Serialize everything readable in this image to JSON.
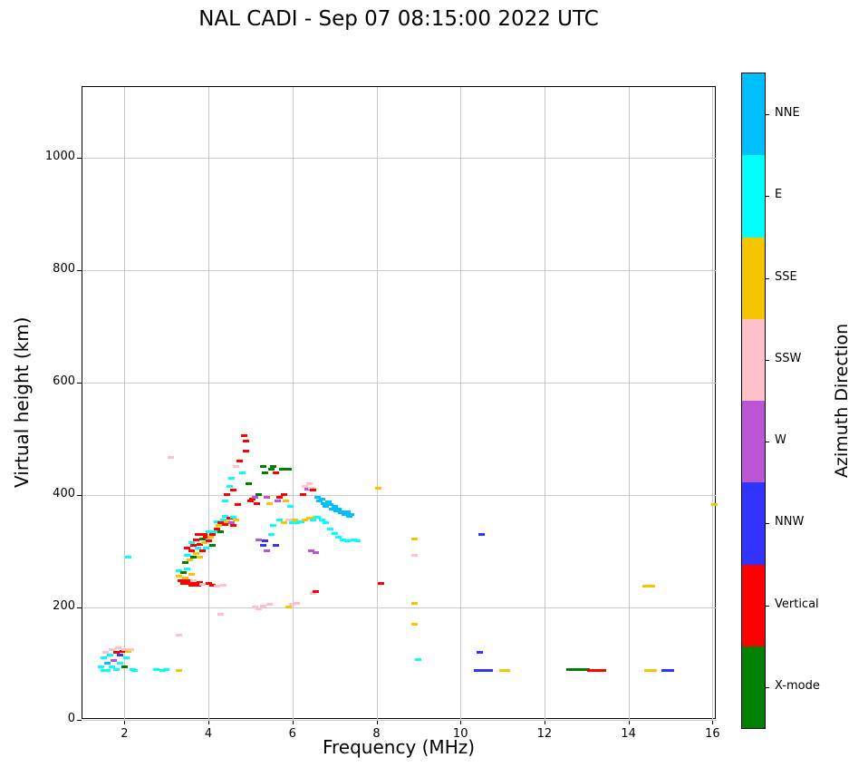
{
  "title": "NAL CADI - Sep 07 08:15:00 2022 UTC",
  "chart_data": {
    "type": "scatter",
    "title": "NAL CADI - Sep 07 08:15:00 2022 UTC",
    "xlabel": "Frequency (MHz)",
    "ylabel": "Virtual height (km)",
    "colorbar_label": "Azimuth Direction",
    "xlim": [
      1,
      16.1
    ],
    "ylim": [
      0,
      1125
    ],
    "x_ticks": [
      2,
      4,
      6,
      8,
      10,
      12,
      14,
      16
    ],
    "y_ticks": [
      0,
      200,
      400,
      600,
      800,
      1000
    ],
    "grid": true,
    "legend_position": "right-colorbar",
    "marker": "horizontal-dash",
    "categories": [
      {
        "label": "NNE",
        "color": "#00BFFF"
      },
      {
        "label": "E",
        "color": "#00FFFF"
      },
      {
        "label": "SSE",
        "color": "#F5C500"
      },
      {
        "label": "SSW",
        "color": "#FFC0CB"
      },
      {
        "label": "W",
        "color": "#BA55D3"
      },
      {
        "label": "NNW",
        "color": "#3333FF"
      },
      {
        "label": "Vertical",
        "color": "#FF0000"
      },
      {
        "label": "X-mode",
        "color": "#008000"
      }
    ],
    "points_format": [
      "frequency_mhz",
      "virtual_height_km",
      "direction_index"
    ],
    "points": [
      [
        1.45,
        95,
        1
      ],
      [
        1.5,
        110,
        1
      ],
      [
        1.5,
        88,
        1
      ],
      [
        1.55,
        120,
        3
      ],
      [
        1.6,
        100,
        0
      ],
      [
        1.6,
        88,
        1
      ],
      [
        1.65,
        115,
        1
      ],
      [
        1.7,
        125,
        3
      ],
      [
        1.7,
        95,
        1
      ],
      [
        1.75,
        105,
        4
      ],
      [
        1.8,
        120,
        6
      ],
      [
        1.8,
        90,
        1
      ],
      [
        1.85,
        128,
        3
      ],
      [
        1.9,
        115,
        5
      ],
      [
        1.9,
        100,
        1
      ],
      [
        1.95,
        122,
        6
      ],
      [
        2.0,
        95,
        7
      ],
      [
        2.0,
        125,
        3
      ],
      [
        2.05,
        110,
        1
      ],
      [
        2.1,
        122,
        2
      ],
      [
        2.15,
        125,
        3
      ],
      [
        2.2,
        90,
        1
      ],
      [
        2.25,
        88,
        1
      ],
      [
        2.1,
        290,
        1
      ],
      [
        2.75,
        90,
        1
      ],
      [
        2.9,
        88,
        1
      ],
      [
        3.0,
        90,
        1
      ],
      [
        3.3,
        150,
        3
      ],
      [
        3.3,
        88,
        2
      ],
      [
        3.3,
        265,
        1
      ],
      [
        3.3,
        255,
        2
      ],
      [
        3.35,
        248,
        6
      ],
      [
        3.4,
        243,
        6
      ],
      [
        3.4,
        262,
        7
      ],
      [
        3.45,
        252,
        2
      ],
      [
        3.5,
        247,
        6
      ],
      [
        3.5,
        268,
        1
      ],
      [
        3.55,
        243,
        6
      ],
      [
        3.6,
        240,
        6
      ],
      [
        3.6,
        258,
        2
      ],
      [
        3.65,
        247,
        3
      ],
      [
        3.7,
        242,
        6
      ],
      [
        3.75,
        239,
        6
      ],
      [
        3.8,
        244,
        6
      ],
      [
        3.85,
        241,
        3
      ],
      [
        3.45,
        280,
        7
      ],
      [
        3.5,
        292,
        1
      ],
      [
        3.5,
        305,
        6
      ],
      [
        3.55,
        285,
        2
      ],
      [
        3.6,
        300,
        6
      ],
      [
        3.6,
        315,
        1
      ],
      [
        3.65,
        290,
        7
      ],
      [
        3.65,
        310,
        6
      ],
      [
        3.7,
        295,
        2
      ],
      [
        3.7,
        320,
        6
      ],
      [
        3.75,
        305,
        1
      ],
      [
        3.75,
        330,
        6
      ],
      [
        3.8,
        312,
        6
      ],
      [
        3.8,
        290,
        2
      ],
      [
        3.85,
        322,
        7
      ],
      [
        3.85,
        300,
        6
      ],
      [
        3.9,
        315,
        2
      ],
      [
        3.9,
        330,
        6
      ],
      [
        3.95,
        305,
        1
      ],
      [
        3.95,
        325,
        6
      ],
      [
        4.0,
        318,
        6
      ],
      [
        4.0,
        335,
        1
      ],
      [
        4.05,
        325,
        2
      ],
      [
        4.1,
        330,
        6
      ],
      [
        4.1,
        310,
        7
      ],
      [
        4.15,
        335,
        1
      ],
      [
        4.2,
        340,
        6
      ],
      [
        4.2,
        352,
        1
      ],
      [
        4.25,
        345,
        2
      ],
      [
        4.3,
        350,
        6
      ],
      [
        4.3,
        335,
        7
      ],
      [
        4.35,
        355,
        1
      ],
      [
        4.4,
        348,
        6
      ],
      [
        4.4,
        362,
        1
      ],
      [
        4.45,
        352,
        2
      ],
      [
        4.5,
        358,
        6
      ],
      [
        4.55,
        350,
        4
      ],
      [
        4.6,
        360,
        1
      ],
      [
        4.6,
        345,
        6
      ],
      [
        4.65,
        355,
        2
      ],
      [
        4.4,
        390,
        1
      ],
      [
        4.45,
        400,
        6
      ],
      [
        4.5,
        415,
        1
      ],
      [
        4.55,
        430,
        1
      ],
      [
        4.6,
        408,
        6
      ],
      [
        4.65,
        450,
        3
      ],
      [
        4.7,
        382,
        6
      ],
      [
        4.75,
        460,
        6
      ],
      [
        4.8,
        440,
        1
      ],
      [
        4.85,
        505,
        6
      ],
      [
        4.9,
        495,
        6
      ],
      [
        4.9,
        478,
        6
      ],
      [
        4.95,
        420,
        7
      ],
      [
        5.0,
        390,
        6
      ],
      [
        5.05,
        392,
        6
      ],
      [
        5.1,
        395,
        4
      ],
      [
        5.15,
        385,
        6
      ],
      [
        5.2,
        400,
        7
      ],
      [
        5.3,
        450,
        7
      ],
      [
        5.35,
        440,
        7
      ],
      [
        5.4,
        395,
        4
      ],
      [
        5.45,
        385,
        2
      ],
      [
        5.5,
        445,
        7
      ],
      [
        5.55,
        450,
        7
      ],
      [
        5.6,
        440,
        6
      ],
      [
        5.65,
        390,
        4
      ],
      [
        5.7,
        395,
        6
      ],
      [
        5.75,
        445,
        7
      ],
      [
        5.8,
        400,
        6
      ],
      [
        5.85,
        390,
        2
      ],
      [
        5.9,
        445,
        7
      ],
      [
        5.95,
        380,
        1
      ],
      [
        5.2,
        320,
        4
      ],
      [
        5.3,
        310,
        5
      ],
      [
        5.35,
        318,
        5
      ],
      [
        5.4,
        300,
        4
      ],
      [
        5.5,
        330,
        1
      ],
      [
        5.55,
        345,
        1
      ],
      [
        5.6,
        310,
        5
      ],
      [
        5.7,
        355,
        1
      ],
      [
        5.8,
        350,
        2
      ],
      [
        5.9,
        355,
        3
      ],
      [
        6.0,
        350,
        1
      ],
      [
        6.05,
        355,
        2
      ],
      [
        6.1,
        350,
        1
      ],
      [
        6.2,
        352,
        1
      ],
      [
        6.3,
        355,
        2
      ],
      [
        6.4,
        358,
        2
      ],
      [
        6.5,
        355,
        1
      ],
      [
        6.55,
        360,
        2
      ],
      [
        6.25,
        400,
        6
      ],
      [
        6.3,
        415,
        3
      ],
      [
        6.35,
        410,
        4
      ],
      [
        6.4,
        420,
        3
      ],
      [
        6.45,
        412,
        3
      ],
      [
        6.5,
        408,
        6
      ],
      [
        6.6,
        395,
        0
      ],
      [
        6.65,
        390,
        0
      ],
      [
        6.7,
        392,
        0
      ],
      [
        6.75,
        385,
        0
      ],
      [
        6.8,
        380,
        0
      ],
      [
        6.85,
        388,
        0
      ],
      [
        6.9,
        382,
        0
      ],
      [
        6.95,
        375,
        0
      ],
      [
        7.0,
        380,
        0
      ],
      [
        7.05,
        372,
        0
      ],
      [
        7.1,
        375,
        0
      ],
      [
        7.15,
        368,
        0
      ],
      [
        7.2,
        370,
        0
      ],
      [
        7.25,
        365,
        0
      ],
      [
        7.3,
        370,
        0
      ],
      [
        7.35,
        362,
        0
      ],
      [
        7.4,
        365,
        0
      ],
      [
        6.6,
        360,
        1
      ],
      [
        6.7,
        355,
        1
      ],
      [
        6.8,
        350,
        1
      ],
      [
        6.9,
        340,
        1
      ],
      [
        7.0,
        332,
        1
      ],
      [
        7.1,
        325,
        1
      ],
      [
        7.2,
        320,
        1
      ],
      [
        7.3,
        318,
        1
      ],
      [
        7.45,
        320,
        1
      ],
      [
        7.55,
        318,
        1
      ],
      [
        6.45,
        300,
        4
      ],
      [
        6.55,
        298,
        4
      ],
      [
        6.5,
        225,
        3
      ],
      [
        6.55,
        228,
        6
      ],
      [
        5.1,
        200,
        3
      ],
      [
        5.2,
        197,
        3
      ],
      [
        5.3,
        202,
        3
      ],
      [
        5.45,
        205,
        3
      ],
      [
        5.9,
        200,
        2
      ],
      [
        6.0,
        205,
        3
      ],
      [
        6.1,
        207,
        3
      ],
      [
        4.0,
        243,
        6
      ],
      [
        4.1,
        240,
        6
      ],
      [
        4.2,
        237,
        3
      ],
      [
        4.35,
        240,
        3
      ],
      [
        4.3,
        188,
        3
      ],
      [
        3.1,
        467,
        3
      ],
      [
        8.05,
        412,
        2
      ],
      [
        8.1,
        243,
        6
      ],
      [
        8.9,
        322,
        2
      ],
      [
        8.9,
        293,
        3
      ],
      [
        8.9,
        207,
        2
      ],
      [
        8.9,
        170,
        2
      ],
      [
        9.0,
        107,
        1
      ],
      [
        10.45,
        120,
        5
      ],
      [
        10.5,
        330,
        5
      ],
      [
        10.4,
        88,
        5
      ],
      [
        10.55,
        88,
        5
      ],
      [
        10.7,
        88,
        5
      ],
      [
        11.0,
        88,
        2
      ],
      [
        11.1,
        88,
        2
      ],
      [
        12.6,
        90,
        7
      ],
      [
        12.75,
        90,
        7
      ],
      [
        12.9,
        90,
        7
      ],
      [
        13.0,
        90,
        7
      ],
      [
        13.1,
        88,
        6
      ],
      [
        13.25,
        88,
        6
      ],
      [
        13.4,
        88,
        6
      ],
      [
        14.4,
        238,
        2
      ],
      [
        14.55,
        238,
        2
      ],
      [
        14.45,
        88,
        2
      ],
      [
        14.6,
        88,
        2
      ],
      [
        14.85,
        88,
        5
      ],
      [
        15.0,
        88,
        5
      ],
      [
        16.05,
        383,
        2
      ]
    ]
  }
}
